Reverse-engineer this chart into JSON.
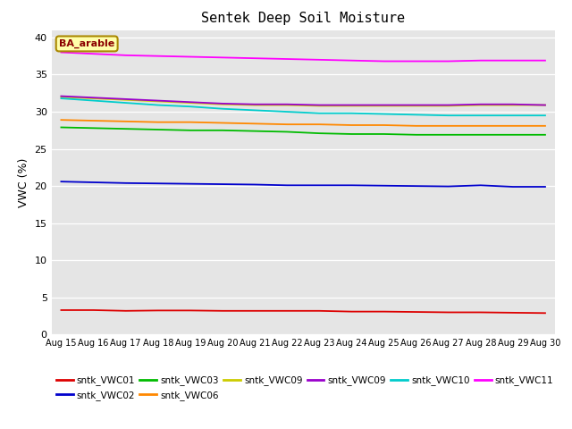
{
  "title": "Sentek Deep Soil Moisture",
  "ylabel": "VWC (%)",
  "annotation": "BA_arable",
  "ylim": [
    0,
    41
  ],
  "yticks": [
    0,
    5,
    10,
    15,
    20,
    25,
    30,
    35,
    40
  ],
  "x_labels": [
    "Aug 15",
    "Aug 16",
    "Aug 17",
    "Aug 18",
    "Aug 19",
    "Aug 20",
    "Aug 21",
    "Aug 22",
    "Aug 23",
    "Aug 24",
    "Aug 25",
    "Aug 26",
    "Aug 27",
    "Aug 28",
    "Aug 29",
    "Aug 30"
  ],
  "background_color": "#e5e5e5",
  "series": [
    {
      "key": "sntk_VWC01",
      "color": "#dd0000",
      "values": [
        3.3,
        3.3,
        3.2,
        3.25,
        3.25,
        3.2,
        3.2,
        3.2,
        3.2,
        3.1,
        3.1,
        3.05,
        3.0,
        3.0,
        2.95,
        2.9
      ]
    },
    {
      "key": "sntk_VWC02",
      "color": "#0000cc",
      "values": [
        20.6,
        20.5,
        20.4,
        20.35,
        20.3,
        20.25,
        20.2,
        20.1,
        20.1,
        20.1,
        20.05,
        20.0,
        19.95,
        20.1,
        19.9,
        19.9
      ]
    },
    {
      "key": "sntk_VWC03",
      "color": "#00bb00",
      "values": [
        27.9,
        27.8,
        27.7,
        27.6,
        27.5,
        27.5,
        27.4,
        27.3,
        27.1,
        27.0,
        27.0,
        26.9,
        26.9,
        26.9,
        26.9,
        26.9
      ]
    },
    {
      "key": "sntk_VWC06",
      "color": "#ff8800",
      "values": [
        28.9,
        28.8,
        28.7,
        28.6,
        28.6,
        28.5,
        28.4,
        28.3,
        28.3,
        28.2,
        28.2,
        28.1,
        28.1,
        28.1,
        28.1,
        28.1
      ]
    },
    {
      "key": "sntk_VWC09",
      "color": "#cccc00",
      "values": [
        32.0,
        31.8,
        31.6,
        31.4,
        31.2,
        31.0,
        30.9,
        30.9,
        30.8,
        30.8,
        30.8,
        30.8,
        30.8,
        30.9,
        30.9,
        30.9
      ]
    },
    {
      "key": "sntk_VWC09b",
      "color": "#9900cc",
      "values": [
        32.1,
        31.9,
        31.7,
        31.5,
        31.3,
        31.1,
        31.0,
        31.0,
        30.9,
        30.9,
        30.9,
        30.9,
        30.9,
        31.0,
        31.0,
        30.9
      ]
    },
    {
      "key": "sntk_VWC10",
      "color": "#00cccc",
      "values": [
        31.8,
        31.5,
        31.2,
        30.9,
        30.7,
        30.4,
        30.2,
        30.0,
        29.8,
        29.8,
        29.7,
        29.6,
        29.5,
        29.5,
        29.5,
        29.5
      ]
    },
    {
      "key": "sntk_VWC11",
      "color": "#ff00ff",
      "values": [
        38.0,
        37.8,
        37.6,
        37.5,
        37.4,
        37.3,
        37.2,
        37.1,
        37.0,
        36.9,
        36.8,
        36.8,
        36.8,
        36.9,
        36.9,
        36.9
      ]
    }
  ],
  "legend_entries_row1": [
    {
      "label": "sntk_VWC01",
      "color": "#dd0000"
    },
    {
      "label": "sntk_VWC02",
      "color": "#0000cc"
    },
    {
      "label": "sntk_VWC03",
      "color": "#00bb00"
    },
    {
      "label": "sntk_VWC06",
      "color": "#ff8800"
    },
    {
      "label": "sntk_VWC09",
      "color": "#cccc00"
    },
    {
      "label": "sntk_VWC09",
      "color": "#9900cc"
    }
  ],
  "legend_entries_row2": [
    {
      "label": "sntk_VWC10",
      "color": "#00cccc"
    },
    {
      "label": "sntk_VWC11",
      "color": "#ff00ff"
    }
  ]
}
